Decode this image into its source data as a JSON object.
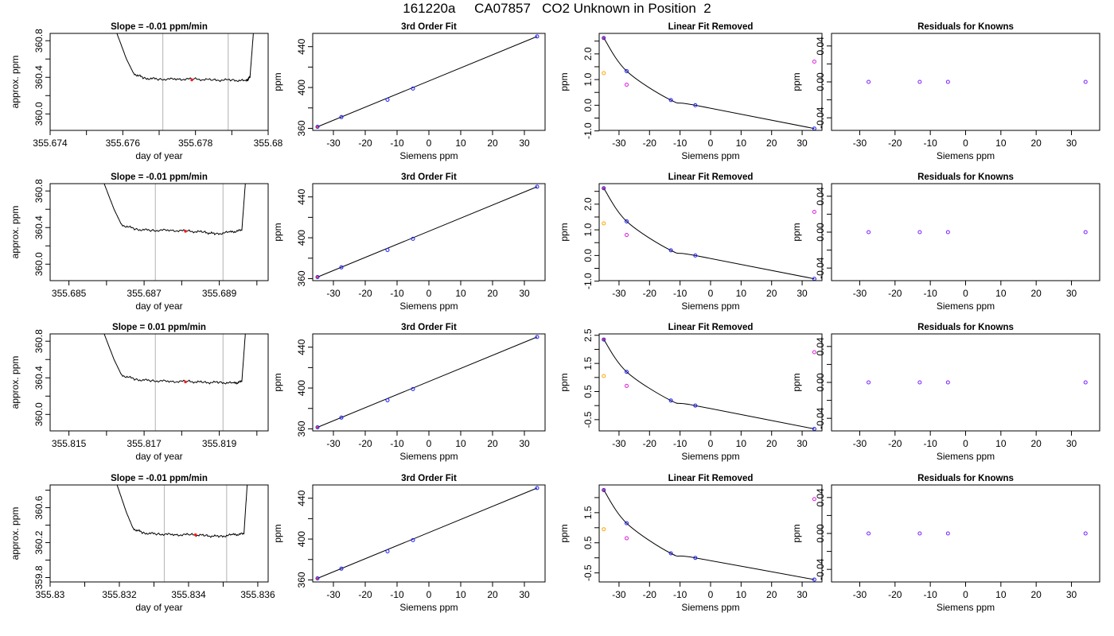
{
  "title": "161220a     CA07857   CO2 Unknown in Position  2",
  "colors": {
    "blue": "#1a1aff",
    "red": "#ff1a1a",
    "orange": "#ffa500",
    "magenta": "#e01ee0",
    "grid": "#bebebe",
    "line": "#000000"
  },
  "chart_data": [
    {
      "panel": "row1-trace",
      "type": "line",
      "title": "Slope =  -0.01  ppm/min",
      "xlabel": "day of year",
      "ylabel": "approx. ppm",
      "xlim": [
        355.674,
        355.68
      ],
      "xticks": [
        355.674,
        355.676,
        355.678,
        355.68
      ],
      "xminor": [
        355.675,
        355.677,
        355.679
      ],
      "ylim": [
        359.82,
        360.88
      ],
      "yticks": [
        360.0,
        360.4,
        360.8
      ],
      "yminor": [
        360.2,
        360.6
      ],
      "ydec": 1,
      "vlines": [
        355.6771,
        355.6789
      ],
      "marker": [
        355.6779,
        360.372
      ],
      "x": [
        355.6758,
        355.6761,
        355.6763,
        355.6766,
        355.677,
        355.6775,
        355.678,
        355.6785,
        355.679,
        355.6794,
        355.6795,
        355.6796
      ],
      "y": [
        360.92,
        360.6,
        360.44,
        360.39,
        360.38,
        360.38,
        360.38,
        360.37,
        360.37,
        360.36,
        360.4,
        360.92
      ]
    },
    {
      "panel": "row1-fit",
      "type": "scatter",
      "title": "3rd Order Fit",
      "xlabel": "Siemens ppm",
      "ylabel": "ppm",
      "xlim": [
        -36.5,
        36.5
      ],
      "xticks": [
        -30,
        -20,
        -10,
        0,
        10,
        20,
        30
      ],
      "ylim": [
        358,
        453
      ],
      "yticks": [
        360,
        400,
        440
      ],
      "yminor": [
        380,
        420
      ],
      "x": [
        -35,
        -27.5,
        -13,
        -5,
        34
      ],
      "y": [
        361.5,
        371,
        388,
        399,
        450
      ]
    },
    {
      "panel": "row1-linear-removed",
      "type": "scatter",
      "title": "Linear Fit Removed",
      "xlabel": "Siemens ppm",
      "ylabel": "ppm",
      "xlim": [
        -36.5,
        36.5
      ],
      "xticks": [
        -30,
        -20,
        -10,
        0,
        10,
        20,
        30
      ],
      "ylim": [
        -0.98,
        2.8
      ],
      "yticks": [
        -1.0,
        0.0,
        1.0,
        2.0
      ],
      "yminor": [
        -0.5,
        0.5,
        1.5,
        2.5
      ],
      "ydec": 1,
      "x": [
        -35,
        -27.5,
        -13,
        -5,
        34
      ],
      "y": [
        2.62,
        1.33,
        0.2,
        0.0,
        -0.91
      ],
      "extra": {
        "x": [
          -35,
          -27.5,
          34
        ],
        "y": [
          1.25,
          0.8,
          1.7
        ]
      }
    },
    {
      "panel": "row1-residuals",
      "type": "scatter",
      "title": "Residuals for Knowns",
      "xlabel": "Siemens ppm",
      "ylabel": "ppm",
      "xlim": [
        -38,
        38
      ],
      "xticks": [
        -30,
        -20,
        -10,
        0,
        10,
        20,
        30
      ],
      "ylim": [
        -0.054,
        0.054
      ],
      "yticks": [
        -0.04,
        0.0,
        0.04
      ],
      "yminor": [
        -0.02,
        0.02
      ],
      "ydec": 2,
      "x": [
        -27.5,
        -13,
        -5,
        34
      ],
      "y": [
        0,
        0,
        0,
        0
      ]
    },
    {
      "panel": "row2-trace",
      "type": "line",
      "title": "Slope =  -0.01  ppm/min",
      "xlabel": "day of year",
      "ylabel": "approx. ppm",
      "xlim": [
        355.6845,
        355.6903
      ],
      "xticks": [
        355.685,
        355.687,
        355.689
      ],
      "xminor": [
        355.686,
        355.688,
        355.69
      ],
      "ylim": [
        359.82,
        360.88
      ],
      "yticks": [
        360.0,
        360.4,
        360.8
      ],
      "yminor": [
        360.2,
        360.6
      ],
      "ydec": 1,
      "vlines": [
        355.6873,
        355.6891
      ],
      "marker": [
        355.6881,
        360.36
      ],
      "x": [
        355.6859,
        355.6862,
        355.6864,
        355.6868,
        355.6872,
        355.6877,
        355.6882,
        355.6886,
        355.6889,
        355.6893,
        355.6896,
        355.6897
      ],
      "y": [
        360.92,
        360.6,
        360.43,
        360.38,
        360.37,
        360.37,
        360.36,
        360.35,
        360.33,
        360.35,
        360.37,
        360.92
      ]
    },
    {
      "panel": "row2-fit",
      "type": "scatter",
      "title": "3rd Order Fit",
      "xlabel": "Siemens ppm",
      "ylabel": "ppm",
      "xlim": [
        -36.5,
        36.5
      ],
      "xticks": [
        -30,
        -20,
        -10,
        0,
        10,
        20,
        30
      ],
      "ylim": [
        358,
        453
      ],
      "yticks": [
        360,
        400,
        440
      ],
      "yminor": [
        380,
        420
      ],
      "x": [
        -35,
        -27.5,
        -13,
        -5,
        34
      ],
      "y": [
        361.5,
        371,
        388,
        399,
        450
      ]
    },
    {
      "panel": "row2-linear-removed",
      "type": "scatter",
      "title": "Linear Fit Removed",
      "xlabel": "Siemens ppm",
      "ylabel": "ppm",
      "xlim": [
        -36.5,
        36.5
      ],
      "xticks": [
        -30,
        -20,
        -10,
        0,
        10,
        20,
        30
      ],
      "ylim": [
        -0.98,
        2.8
      ],
      "yticks": [
        -1.0,
        0.0,
        1.0,
        2.0
      ],
      "yminor": [
        -0.5,
        0.5,
        1.5,
        2.5
      ],
      "ydec": 1,
      "x": [
        -35,
        -27.5,
        -13,
        -5,
        34
      ],
      "y": [
        2.62,
        1.33,
        0.2,
        0.0,
        -0.91
      ],
      "extra": {
        "x": [
          -35,
          -27.5,
          34
        ],
        "y": [
          1.25,
          0.8,
          1.7
        ]
      }
    },
    {
      "panel": "row2-residuals",
      "type": "scatter",
      "title": "Residuals for Knowns",
      "xlabel": "Siemens ppm",
      "ylabel": "ppm",
      "xlim": [
        -38,
        38
      ],
      "xticks": [
        -30,
        -20,
        -10,
        0,
        10,
        20,
        30
      ],
      "ylim": [
        -0.054,
        0.054
      ],
      "yticks": [
        -0.04,
        0.0,
        0.04
      ],
      "yminor": [
        -0.02,
        0.02
      ],
      "ydec": 2,
      "x": [
        -27.5,
        -13,
        -5,
        34
      ],
      "y": [
        0,
        0,
        0,
        0
      ]
    },
    {
      "panel": "row3-trace",
      "type": "line",
      "title": "Slope =  0.01  ppm/min",
      "xlabel": "day of year",
      "ylabel": "approx. ppm",
      "xlim": [
        355.8145,
        355.8203
      ],
      "xticks": [
        355.815,
        355.817,
        355.819
      ],
      "xminor": [
        355.816,
        355.818,
        355.82
      ],
      "ylim": [
        359.82,
        360.88
      ],
      "yticks": [
        360.0,
        360.4,
        360.8
      ],
      "yminor": [
        360.2,
        360.6
      ],
      "ydec": 1,
      "vlines": [
        355.8173,
        355.8191
      ],
      "marker": [
        355.8181,
        360.355
      ],
      "x": [
        355.8159,
        355.8162,
        355.8164,
        355.8168,
        355.8172,
        355.8177,
        355.8182,
        355.8186,
        355.819,
        355.8194,
        355.8196,
        355.8197
      ],
      "y": [
        360.92,
        360.6,
        360.43,
        360.38,
        360.37,
        360.36,
        360.36,
        360.35,
        360.35,
        360.34,
        360.36,
        360.92
      ]
    },
    {
      "panel": "row3-fit",
      "type": "scatter",
      "title": "3rd Order Fit",
      "xlabel": "Siemens ppm",
      "ylabel": "ppm",
      "xlim": [
        -36.5,
        36.5
      ],
      "xticks": [
        -30,
        -20,
        -10,
        0,
        10,
        20,
        30
      ],
      "ylim": [
        358,
        453
      ],
      "yticks": [
        360,
        400,
        440
      ],
      "yminor": [
        380,
        420
      ],
      "x": [
        -35,
        -27.5,
        -13,
        -5,
        34
      ],
      "y": [
        361.5,
        371,
        388,
        399,
        450
      ]
    },
    {
      "panel": "row3-linear-removed",
      "type": "scatter",
      "title": "Linear Fit Removed",
      "xlabel": "Siemens ppm",
      "ylabel": "ppm",
      "xlim": [
        -36.5,
        36.5
      ],
      "xticks": [
        -30,
        -20,
        -10,
        0,
        10,
        20,
        30
      ],
      "ylim": [
        -0.9,
        2.55
      ],
      "yticks": [
        -0.5,
        0.5,
        1.5,
        2.5
      ],
      "yminor": [
        0.0,
        1.0,
        2.0
      ],
      "ydec": 1,
      "x": [
        -35,
        -27.5,
        -13,
        -5,
        34
      ],
      "y": [
        2.35,
        1.2,
        0.18,
        0.0,
        -0.83
      ],
      "extra": {
        "x": [
          -35,
          -27.5,
          34
        ],
        "y": [
          1.05,
          0.7,
          1.9
        ]
      }
    },
    {
      "panel": "row3-residuals",
      "type": "scatter",
      "title": "Residuals for Knowns",
      "xlabel": "Siemens ppm",
      "ylabel": "ppm",
      "xlim": [
        -38,
        38
      ],
      "xticks": [
        -30,
        -20,
        -10,
        0,
        10,
        20,
        30
      ],
      "ylim": [
        -0.054,
        0.054
      ],
      "yticks": [
        -0.04,
        0.0,
        0.04
      ],
      "yminor": [
        -0.02,
        0.02
      ],
      "ydec": 2,
      "x": [
        -27.5,
        -13,
        -5,
        34
      ],
      "y": [
        0,
        0,
        0,
        0
      ]
    },
    {
      "panel": "row4-trace",
      "type": "line",
      "title": "Slope =  -0.01  ppm/min",
      "xlabel": "day of year",
      "ylabel": "approx. ppm",
      "xlim": [
        355.83,
        355.8363
      ],
      "xticks": [
        355.83,
        355.832,
        355.834,
        355.836
      ],
      "xminor": [
        355.831,
        355.833,
        355.835
      ],
      "ylim": [
        359.75,
        360.86
      ],
      "yticks": [
        359.8,
        360.2,
        360.6
      ],
      "yminor": [
        360.0,
        360.4,
        360.8
      ],
      "ydec": 1,
      "vlines": [
        355.8333,
        355.8351
      ],
      "marker": [
        355.8342,
        360.29
      ],
      "x": [
        355.8319,
        355.8322,
        355.8324,
        355.8327,
        355.8331,
        355.8336,
        355.8341,
        355.8345,
        355.8349,
        355.8353,
        355.8356,
        355.8357
      ],
      "y": [
        360.9,
        360.55,
        360.36,
        360.31,
        360.3,
        360.29,
        360.29,
        360.28,
        360.27,
        360.29,
        360.3,
        360.9
      ]
    },
    {
      "panel": "row4-fit",
      "type": "scatter",
      "title": "3rd Order Fit",
      "xlabel": "Siemens ppm",
      "ylabel": "ppm",
      "xlim": [
        -36.5,
        36.5
      ],
      "xticks": [
        -30,
        -20,
        -10,
        0,
        10,
        20,
        30
      ],
      "ylim": [
        358,
        453
      ],
      "yticks": [
        360,
        400,
        440
      ],
      "yminor": [
        380,
        420
      ],
      "x": [
        -35,
        -27.5,
        -13,
        -5,
        34
      ],
      "y": [
        361.5,
        371,
        388,
        399,
        450
      ]
    },
    {
      "panel": "row4-linear-removed",
      "type": "scatter",
      "title": "Linear Fit Removed",
      "xlabel": "Siemens ppm",
      "ylabel": "ppm",
      "xlim": [
        -36.5,
        36.5
      ],
      "xticks": [
        -30,
        -20,
        -10,
        0,
        10,
        20,
        30
      ],
      "ylim": [
        -0.8,
        2.42
      ],
      "yticks": [
        -0.5,
        0.5,
        1.5
      ],
      "yminor": [
        0.0,
        1.0,
        2.0
      ],
      "ydec": 1,
      "x": [
        -35,
        -27.5,
        -13,
        -5,
        34
      ],
      "y": [
        2.25,
        1.15,
        0.15,
        0.0,
        -0.72
      ],
      "extra": {
        "x": [
          -35,
          -27.5,
          34
        ],
        "y": [
          0.95,
          0.65,
          1.95
        ]
      }
    },
    {
      "panel": "row4-residuals",
      "type": "scatter",
      "title": "Residuals for Knowns",
      "xlabel": "Siemens ppm",
      "ylabel": "ppm",
      "xlim": [
        -38,
        38
      ],
      "xticks": [
        -30,
        -20,
        -10,
        0,
        10,
        20,
        30
      ],
      "ylim": [
        -0.054,
        0.054
      ],
      "yticks": [
        -0.04,
        0.0,
        0.04
      ],
      "yminor": [
        -0.02,
        0.02
      ],
      "ydec": 2,
      "x": [
        -27.5,
        -13,
        -5,
        34
      ],
      "y": [
        0,
        0,
        0,
        0
      ]
    }
  ]
}
